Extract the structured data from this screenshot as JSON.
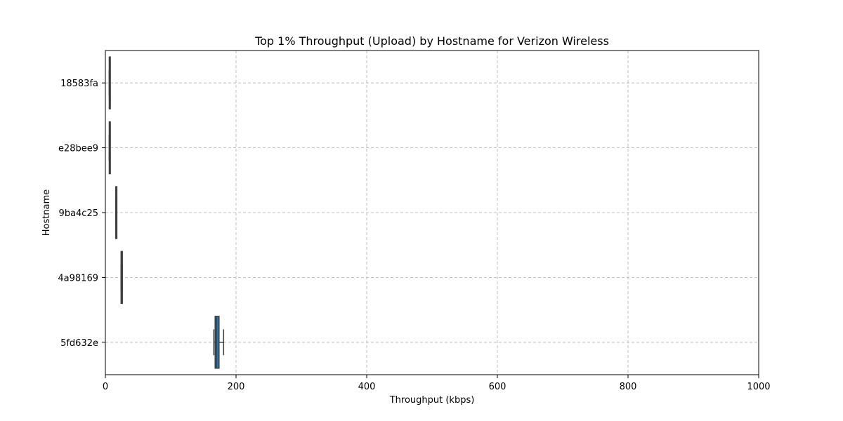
{
  "chart_data": {
    "type": "box",
    "title": "Top 1% Throughput (Upload) by Hostname for Verizon Wireless",
    "xlabel": "Throughput (kbps)",
    "ylabel": "Hostname",
    "xlim": [
      0,
      1000
    ],
    "xticks": [
      0,
      200,
      400,
      600,
      800,
      1000
    ],
    "grid": true,
    "orientation": "horizontal",
    "box_color": "#1f77b4",
    "categories": [
      "18583fa",
      "e28bee9",
      "9ba4c25",
      "4a98169",
      "5fd632e"
    ],
    "boxes": [
      {
        "category": "18583fa",
        "whisker_low": 6,
        "q1": 6,
        "median": 6,
        "q3": 6,
        "whisker_high": 6
      },
      {
        "category": "e28bee9",
        "whisker_low": 6,
        "q1": 6,
        "median": 6,
        "q3": 6,
        "whisker_high": 6
      },
      {
        "category": "9ba4c25",
        "whisker_low": 16,
        "q1": 16,
        "median": 16,
        "q3": 16,
        "whisker_high": 16
      },
      {
        "category": "4a98169",
        "whisker_low": 24,
        "q1": 24,
        "median": 25,
        "q3": 26,
        "whisker_high": 26
      },
      {
        "category": "5fd632e",
        "whisker_low": 166,
        "q1": 168,
        "median": 170,
        "q3": 174,
        "whisker_high": 181
      }
    ]
  }
}
